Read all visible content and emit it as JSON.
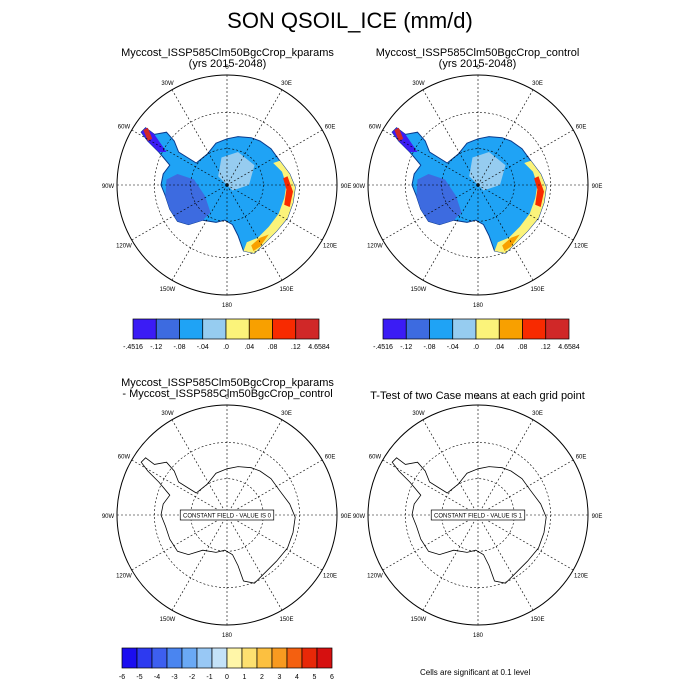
{
  "title": "SON QSOIL_ICE (mm/d)",
  "panels": [
    {
      "title_line1": "Myccost_ISSP585Clm50BgcCrop_kparams",
      "title_line2": "(yrs 2015-2048)"
    },
    {
      "title_line1": "Myccost_ISSP585Clm50BgcCrop_control",
      "title_line2": "(yrs 2015-2048)"
    },
    {
      "title_line1": "Myccost_ISSP585Clm50BgcCrop_kparams",
      "title_line2": "- Myccost_ISSP585Clm50BgcCrop_control",
      "note": "CONSTANT FIELD - VALUE IS 0"
    },
    {
      "title_line1": "T-Test of two Case means at each grid point",
      "title_line2": "",
      "note": "CONSTANT FIELD - VALUE IS 1"
    }
  ],
  "longitude_labels": [
    "0",
    "30E",
    "60E",
    "90E",
    "120E",
    "150E",
    "180",
    "150W",
    "120W",
    "90W",
    "60W",
    "30W"
  ],
  "colorbar_top": {
    "labels": [
      "-.4516",
      "-.12",
      "-.08",
      "-.04",
      ".0",
      ".04",
      ".08",
      ".12",
      "4.6584"
    ],
    "colors": [
      "#3b1cf5",
      "#3d6be0",
      "#1fa3f5",
      "#96ccf0",
      "#fbf37a",
      "#f8a000",
      "#f82a00",
      "#d02828"
    ]
  },
  "colorbar_bottom": {
    "labels": [
      "-6",
      "-5",
      "-4",
      "-3",
      "-2",
      "-1",
      "0",
      "1",
      "2",
      "3",
      "4",
      "5",
      "6"
    ],
    "colors": [
      "#1b0df0",
      "#2d3af0",
      "#3d5ff0",
      "#4a85f0",
      "#6aa9f5",
      "#98c8f5",
      "#c4e2f8",
      "#fff6a8",
      "#fde070",
      "#fcc040",
      "#f89a20",
      "#f46010",
      "#e82808",
      "#d61010"
    ]
  },
  "significance_note": "Cells are significant at 0.1 level"
}
